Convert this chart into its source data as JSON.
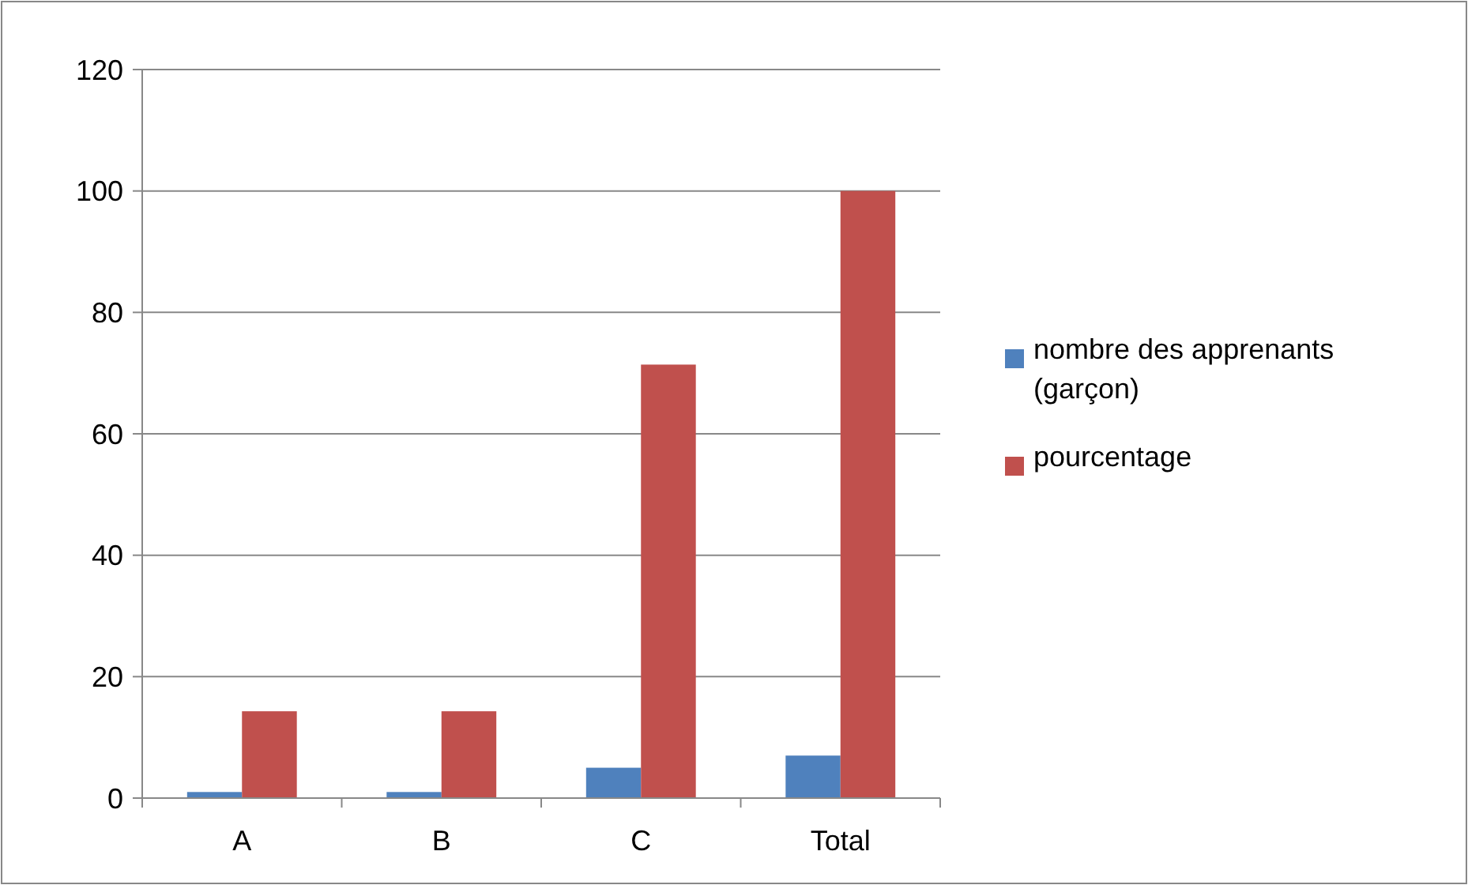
{
  "chart_data": {
    "type": "bar",
    "categories": [
      "A",
      "B",
      "C",
      "Total"
    ],
    "series": [
      {
        "name": "nombre des apprenants (garçon)",
        "color": "#4f81bd",
        "values": [
          1,
          1,
          5,
          7
        ]
      },
      {
        "name": "pourcentage",
        "color": "#c0504d",
        "values": [
          14.3,
          14.3,
          71.4,
          100
        ]
      }
    ],
    "ylim": [
      0,
      120
    ],
    "yticks": [
      0,
      20,
      40,
      60,
      80,
      100,
      120
    ],
    "grid": "y",
    "legend": "right"
  }
}
